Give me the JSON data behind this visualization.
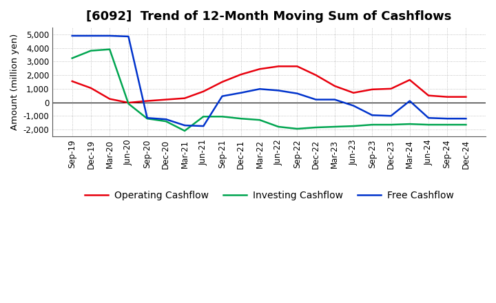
{
  "title": "[6092]  Trend of 12-Month Moving Sum of Cashflows",
  "ylabel": "Amount (million yen)",
  "xlabels": [
    "Sep-19",
    "Dec-19",
    "Mar-20",
    "Jun-20",
    "Sep-20",
    "Dec-20",
    "Mar-21",
    "Jun-21",
    "Sep-21",
    "Dec-21",
    "Mar-22",
    "Jun-22",
    "Sep-22",
    "Dec-22",
    "Mar-23",
    "Jun-23",
    "Sep-23",
    "Dec-23",
    "Mar-24",
    "Jun-24",
    "Sep-24",
    "Dec-24"
  ],
  "operating": [
    1550,
    1050,
    250,
    -30,
    100,
    200,
    300,
    800,
    1500,
    2050,
    2450,
    2650,
    2650,
    2000,
    1200,
    700,
    950,
    1000,
    1650,
    500,
    400,
    400
  ],
  "investing": [
    3250,
    3800,
    3900,
    -100,
    -1200,
    -1400,
    -2100,
    -1050,
    -1050,
    -1200,
    -1300,
    -1800,
    -1950,
    -1850,
    -1800,
    -1750,
    -1650,
    -1650,
    -1600,
    -1650,
    -1650,
    -1650
  ],
  "free": [
    4900,
    4900,
    4900,
    4850,
    -1150,
    -1250,
    -1700,
    -1750,
    450,
    700,
    980,
    870,
    650,
    200,
    200,
    -250,
    -950,
    -1000,
    100,
    -1150,
    -1200,
    -1200
  ],
  "operating_color": "#e8000d",
  "investing_color": "#00a550",
  "free_color": "#0033cc",
  "background_color": "#ffffff",
  "plot_bg_color": "#ffffff",
  "grid_color": "#b0b0b0",
  "ylim": [
    -2500,
    5500
  ],
  "yticks": [
    -2000,
    -1000,
    0,
    1000,
    2000,
    3000,
    4000,
    5000
  ],
  "title_fontsize": 13,
  "axis_fontsize": 9.5,
  "legend_fontsize": 10,
  "tick_fontsize": 8.5
}
